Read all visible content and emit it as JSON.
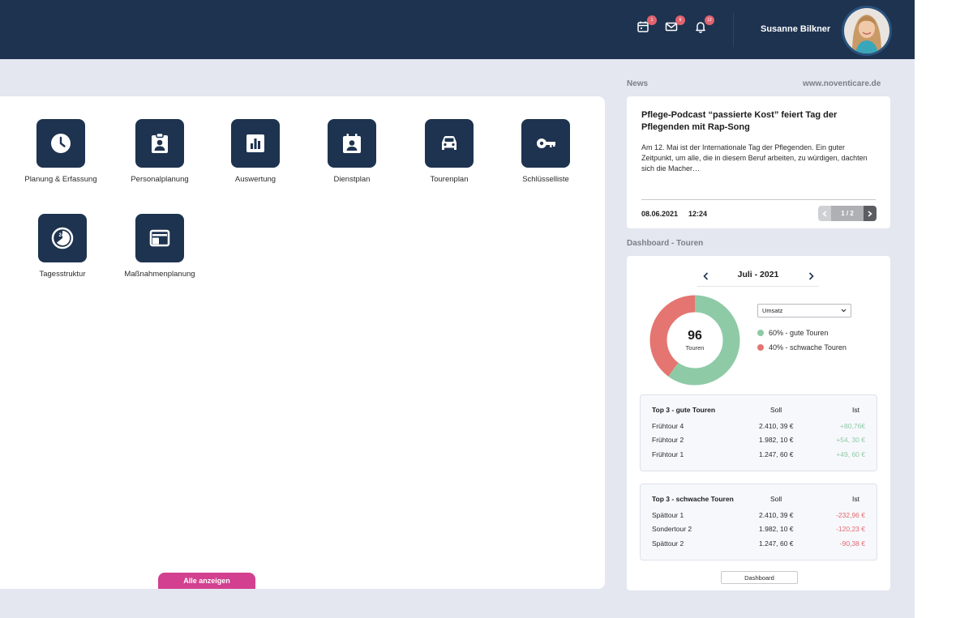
{
  "header": {
    "icons": [
      {
        "name": "calendar-icon",
        "badge": "1"
      },
      {
        "name": "mail-icon",
        "badge": "6"
      },
      {
        "name": "bell-icon",
        "badge": "12"
      }
    ],
    "user_name": "Susanne Bilkner"
  },
  "modules": [
    {
      "label": "Planung & Erfassung",
      "icon": "clock-icon"
    },
    {
      "label": "Personalplanung",
      "icon": "id-badge-icon"
    },
    {
      "label": "Auswertung",
      "icon": "bar-chart-icon"
    },
    {
      "label": "Dienstplan",
      "icon": "calendar-person-icon"
    },
    {
      "label": "Tourenplan",
      "icon": "car-icon"
    },
    {
      "label": "Schlüsselliste",
      "icon": "key-icon"
    },
    {
      "label": "Tagesstruktur",
      "icon": "24h-clock-icon"
    },
    {
      "label": "Maßnahmenplanung",
      "icon": "layout-icon"
    }
  ],
  "show_all_label": "Alle anzeigen",
  "news": {
    "section_title": "News",
    "source": "www.noventicare.de",
    "headline": "Pflege-Podcast “passierte Kost” feiert Tag der Pflegenden mit Rap-Song",
    "text": "Am 12. Mai ist der Internationale Tag der Pflegenden. Ein guter Zeitpunkt, um alle, die in diesem Beruf arbeiten, zu würdigen, dachten sich die Macher…",
    "date": "08.06.2021",
    "time": "12:24",
    "pager": "1 / 2"
  },
  "dashboard": {
    "section_title": "Dashboard - Touren",
    "month": "Juli - 2021",
    "total": "96",
    "total_label": "Touren",
    "select_value": "Umsatz",
    "legend": [
      {
        "label": "60% - gute Touren",
        "value": 60,
        "color": "#8ecaa6"
      },
      {
        "label": "40% - schwache Touren",
        "value": 40,
        "color": "#e47570"
      }
    ],
    "good": {
      "title": "Top 3 - gute Touren",
      "col_soll": "Soll",
      "col_ist": "Ist",
      "rows": [
        {
          "name": "Frühtour 4",
          "soll": "2.410, 39 €",
          "ist": "+80,76€"
        },
        {
          "name": "Frühtour 2",
          "soll": "1.982, 10 €",
          "ist": "+54, 30 €"
        },
        {
          "name": "Frühtour 1",
          "soll": "1.247, 60 €",
          "ist": "+49, 60 €"
        }
      ]
    },
    "weak": {
      "title": "Top 3 - schwache Touren",
      "col_soll": "Soll",
      "col_ist": "Ist",
      "rows": [
        {
          "name": "Spättour 1",
          "soll": "2.410, 39 €",
          "ist": "-232,96 €"
        },
        {
          "name": "Sondertour 2",
          "soll": "1.982, 10 €",
          "ist": "-120,23 €"
        },
        {
          "name": "Spättour 2",
          "soll": "1.247, 60 €",
          "ist": "-90,38 €"
        }
      ]
    },
    "button_label": "Dashboard"
  },
  "colors": {
    "navy": "#1d3350",
    "accent_pink": "#d2408f",
    "good": "#8ecaa6",
    "weak": "#e47570",
    "badge": "#e06470"
  }
}
